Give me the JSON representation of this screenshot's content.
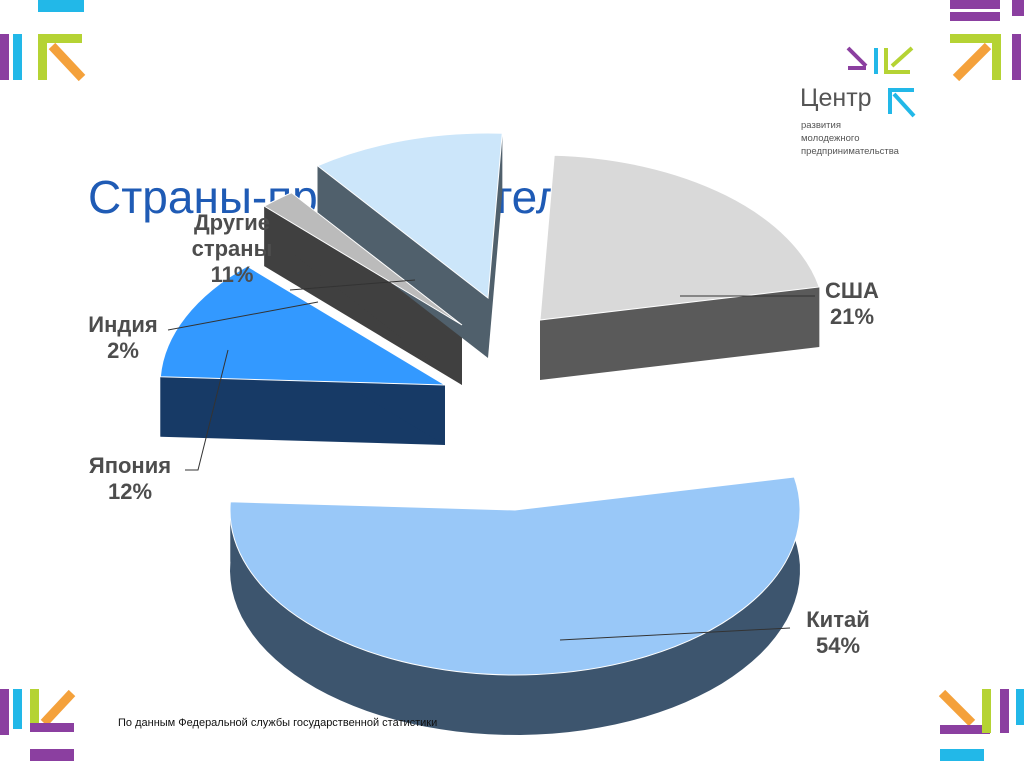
{
  "slide": {
    "title": "Страны-производители",
    "footnote": "По данным Федеральной  службы государственной статистики"
  },
  "logo": {
    "name": "Центр",
    "subtitle": [
      "развития",
      "молодежного",
      "предпринимательства"
    ],
    "icon": "arrows-logo-icon"
  },
  "colors": {
    "title": "#1f5bb5",
    "label": "#4d4d4d",
    "accent_green": "#b5d334",
    "accent_purple": "#8b3fa0",
    "accent_cyan": "#22b8e8",
    "accent_orange": "#f4a13b"
  },
  "chart_data": {
    "type": "pie",
    "title": "",
    "style": "3d-exploded",
    "legend": "none",
    "unit": "%",
    "slices": [
      {
        "label": "США",
        "value": 21,
        "value_label": "21%",
        "color": "#d9d9d9",
        "side_color": "#5a5a5a"
      },
      {
        "label": "Китай",
        "value": 54,
        "value_label": "54%",
        "color": "#99c8f8",
        "side_color": "#3d556e"
      },
      {
        "label": "Япония",
        "value": 12,
        "value_label": "12%",
        "color": "#3399ff",
        "side_color": "#173a66"
      },
      {
        "label": "Индия",
        "value": 2,
        "value_label": "2%",
        "color": "#bbbbbb",
        "side_color": "#404040"
      },
      {
        "label": "Другие\nстраны",
        "value": 11,
        "value_label": "11%",
        "color": "#cce6fa",
        "side_color": "#50606c"
      }
    ]
  }
}
